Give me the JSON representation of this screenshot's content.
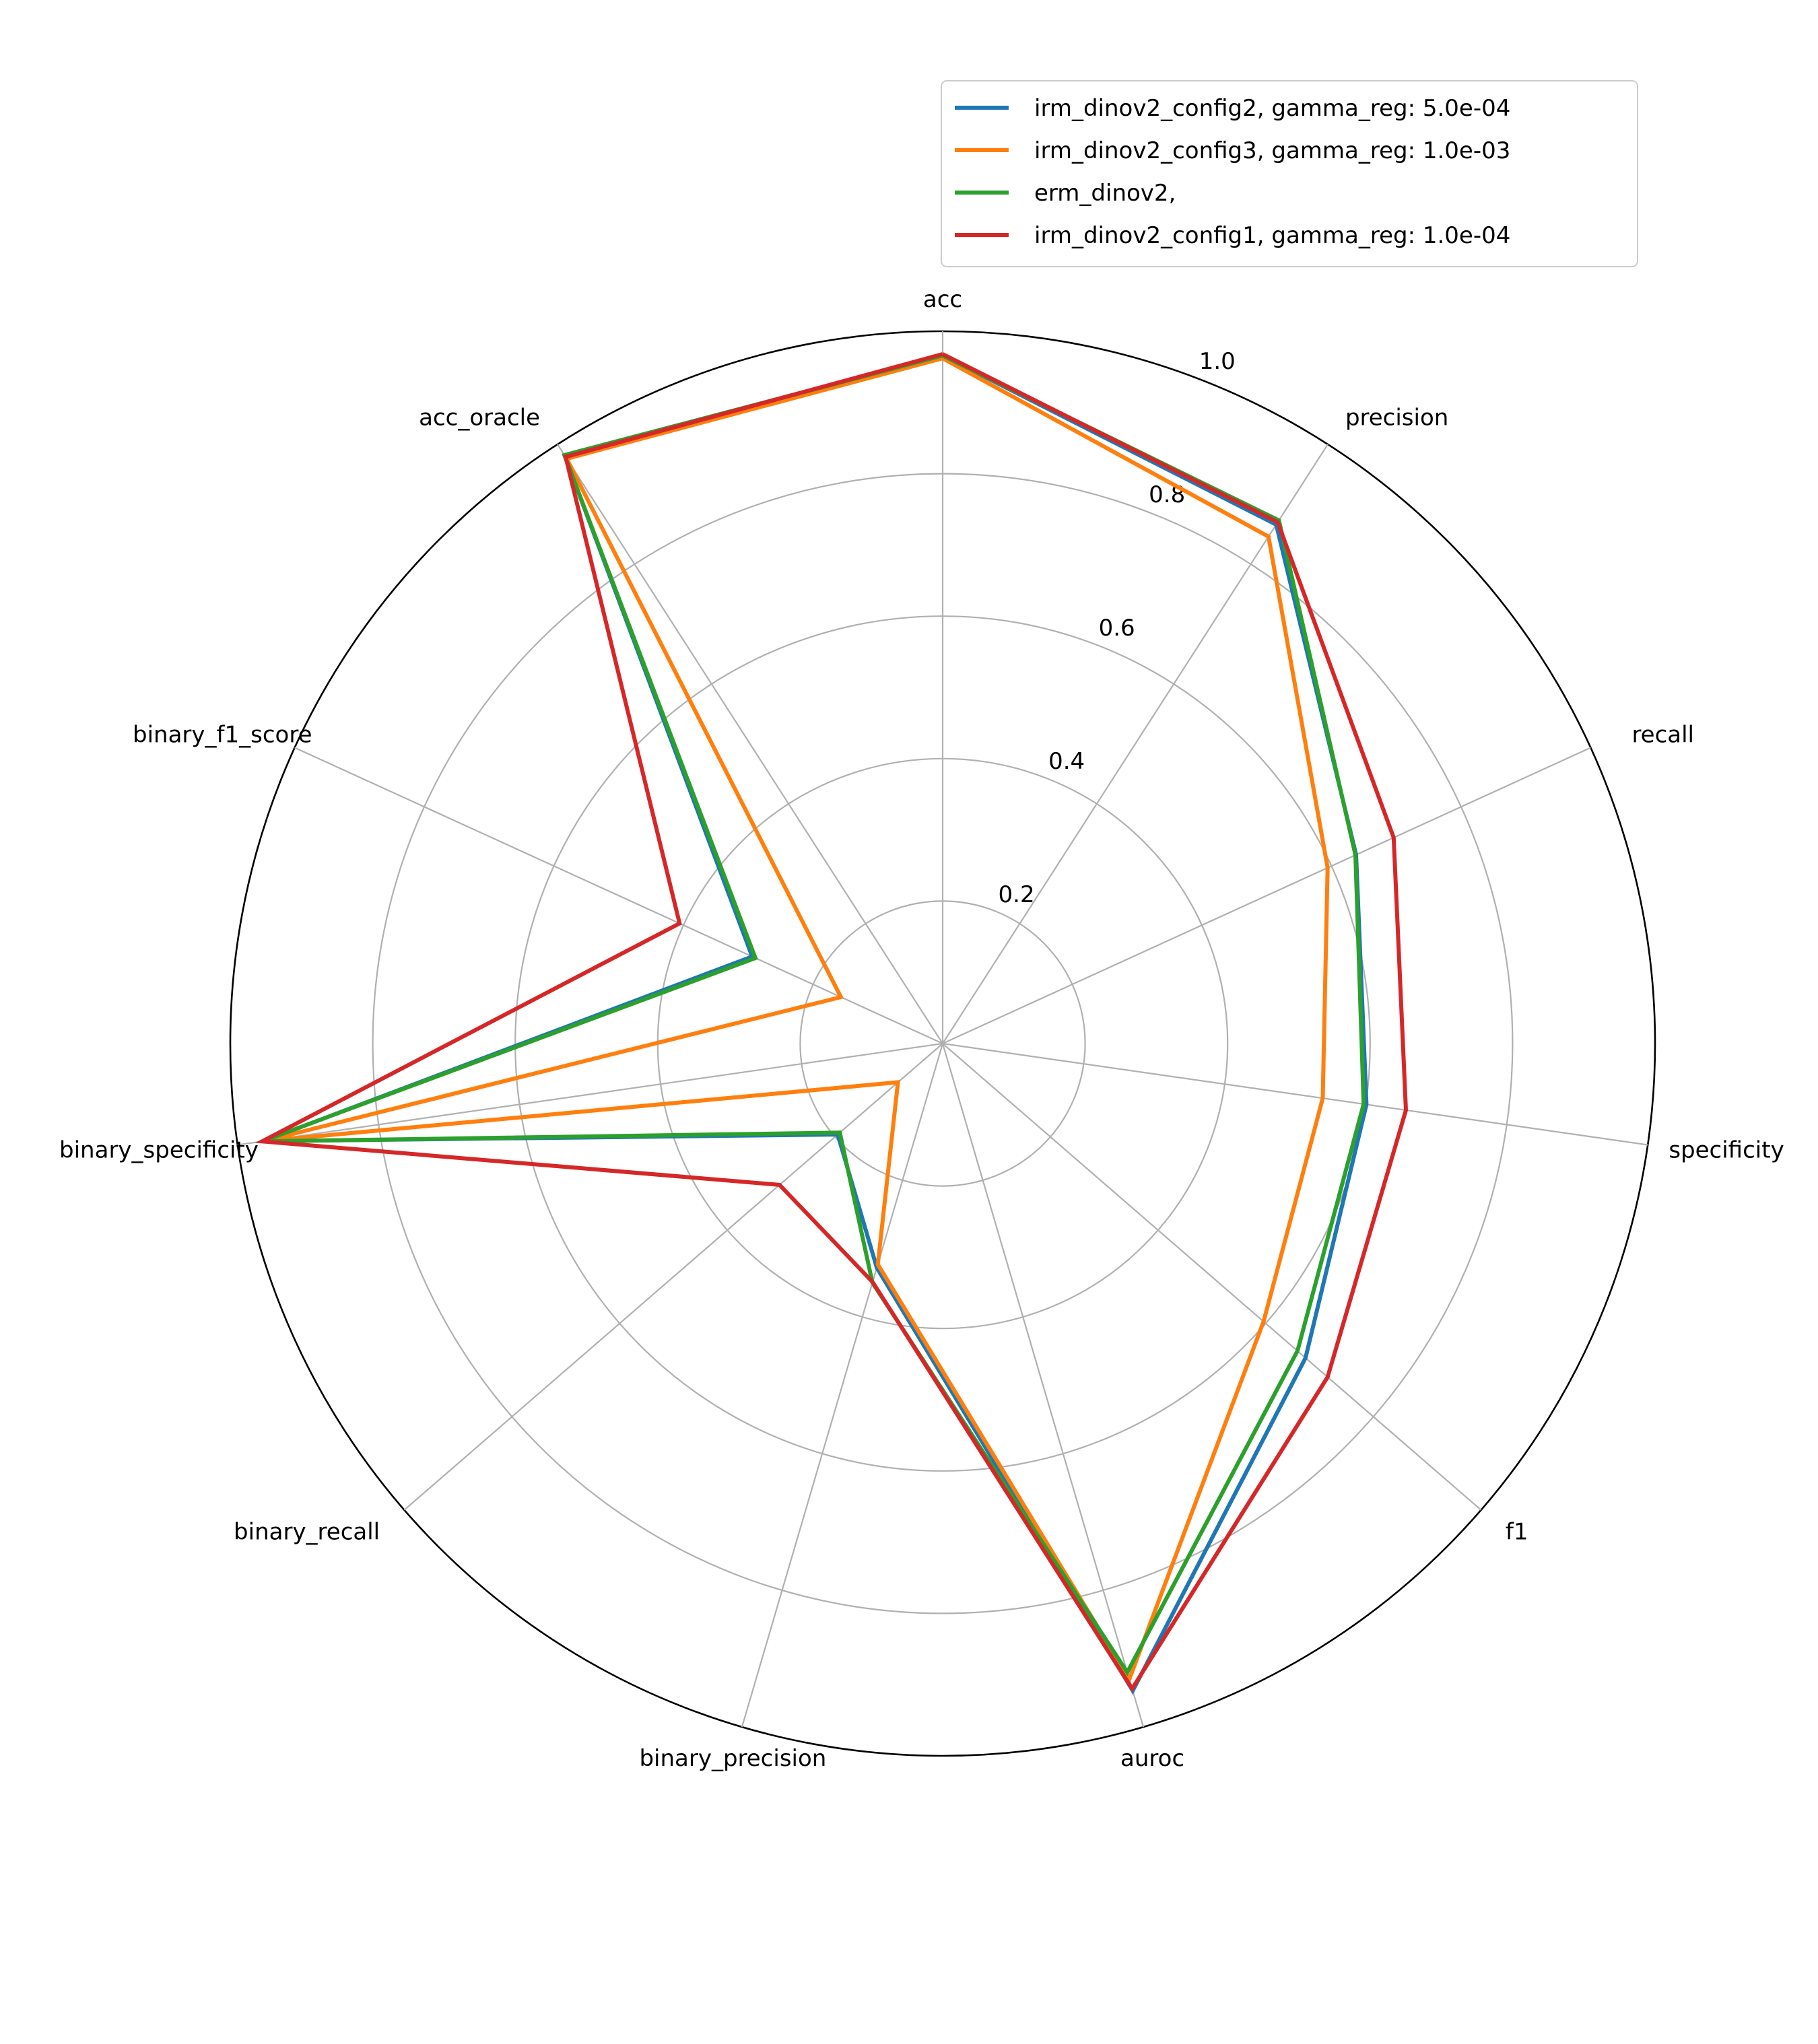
{
  "chart_data": {
    "type": "radar",
    "categories": [
      "acc",
      "precision",
      "recall",
      "specificity",
      "f1",
      "auroc",
      "binary_precision",
      "binary_recall",
      "binary_specificity",
      "binary_f1_score",
      "acc_oracle"
    ],
    "radial_ticks": [
      "0.2",
      "0.4",
      "0.6",
      "0.8",
      "1.0"
    ],
    "rlim": [
      0,
      1
    ],
    "grid": true,
    "legend_position": "top-right",
    "series": [
      {
        "name": "irm_dinov2_config2, gamma_reg: 5.0e-04",
        "color": "#1f77b4",
        "values": [
          0.966,
          0.866,
          0.638,
          0.601,
          0.674,
          0.947,
          0.328,
          0.195,
          0.963,
          0.294,
          0.982
        ]
      },
      {
        "name": "irm_dinov2_config3, gamma_reg: 1.0e-03",
        "color": "#ff7f0e",
        "values": [
          0.962,
          0.846,
          0.594,
          0.539,
          0.596,
          0.93,
          0.323,
          0.083,
          0.963,
          0.157,
          0.976
        ]
      },
      {
        "name": "erm_dinov2,",
        "color": "#2ca02c",
        "values": [
          0.966,
          0.873,
          0.637,
          0.597,
          0.659,
          0.92,
          0.35,
          0.191,
          0.965,
          0.289,
          0.982
        ]
      },
      {
        "name": "irm_dinov2_config1, gamma_reg: 1.0e-04",
        "color": "#d62728",
        "values": [
          0.968,
          0.87,
          0.696,
          0.657,
          0.715,
          0.944,
          0.349,
          0.303,
          0.965,
          0.406,
          0.979
        ]
      }
    ]
  }
}
